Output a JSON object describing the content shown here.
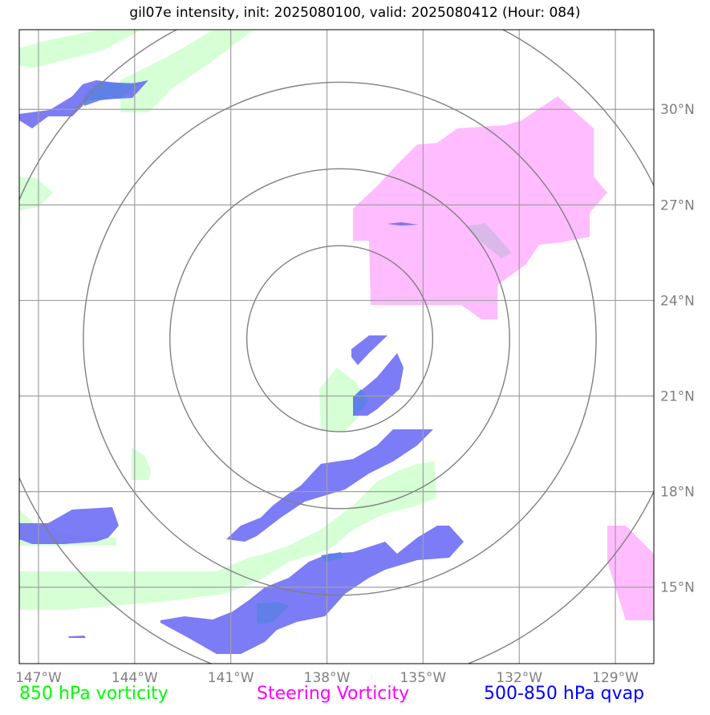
{
  "title": "gil07e intensity, init: 2025080100, valid: 2025080412 (Hour: 084)",
  "map": {
    "extent": {
      "lon_min": -147.6,
      "lon_max": -127.8,
      "lat_min": 12.6,
      "lat_max": 32.5
    },
    "lon_ticks": [
      {
        "lon": -147,
        "label": "147°W"
      },
      {
        "lon": -144,
        "label": "144°W"
      },
      {
        "lon": -141,
        "label": "141°W"
      },
      {
        "lon": -138,
        "label": "138°W"
      },
      {
        "lon": -135,
        "label": "135°W"
      },
      {
        "lon": -132,
        "label": "132°W"
      },
      {
        "lon": -129,
        "label": "129°W"
      }
    ],
    "lat_ticks": [
      {
        "lat": 30,
        "label": "30°N"
      },
      {
        "lat": 27,
        "label": "27°N"
      },
      {
        "lat": 24,
        "label": "24°N"
      },
      {
        "lat": 21,
        "label": "21°N"
      },
      {
        "lat": 18,
        "label": "18°N"
      },
      {
        "lat": 15,
        "label": "15°N"
      }
    ],
    "grid": true,
    "grid_color": "#a0a0a0",
    "range_rings": {
      "center_lon": -137.6,
      "center_lat": 22.8,
      "radii_deg": [
        2.9,
        5.3,
        8.0,
        10.9
      ],
      "color": "#808080"
    },
    "colors": {
      "vort850": "#ccffcc",
      "steering": "#ffb0ff",
      "qvap": "#6a6af5"
    }
  },
  "legend": [
    {
      "label": "850 hPa vorticity",
      "color": "#00ff00"
    },
    {
      "label": "Steering Vorticity",
      "color": "#ff00ff"
    },
    {
      "label": "500-850 hPa qvap",
      "color": "#0000ff"
    }
  ]
}
